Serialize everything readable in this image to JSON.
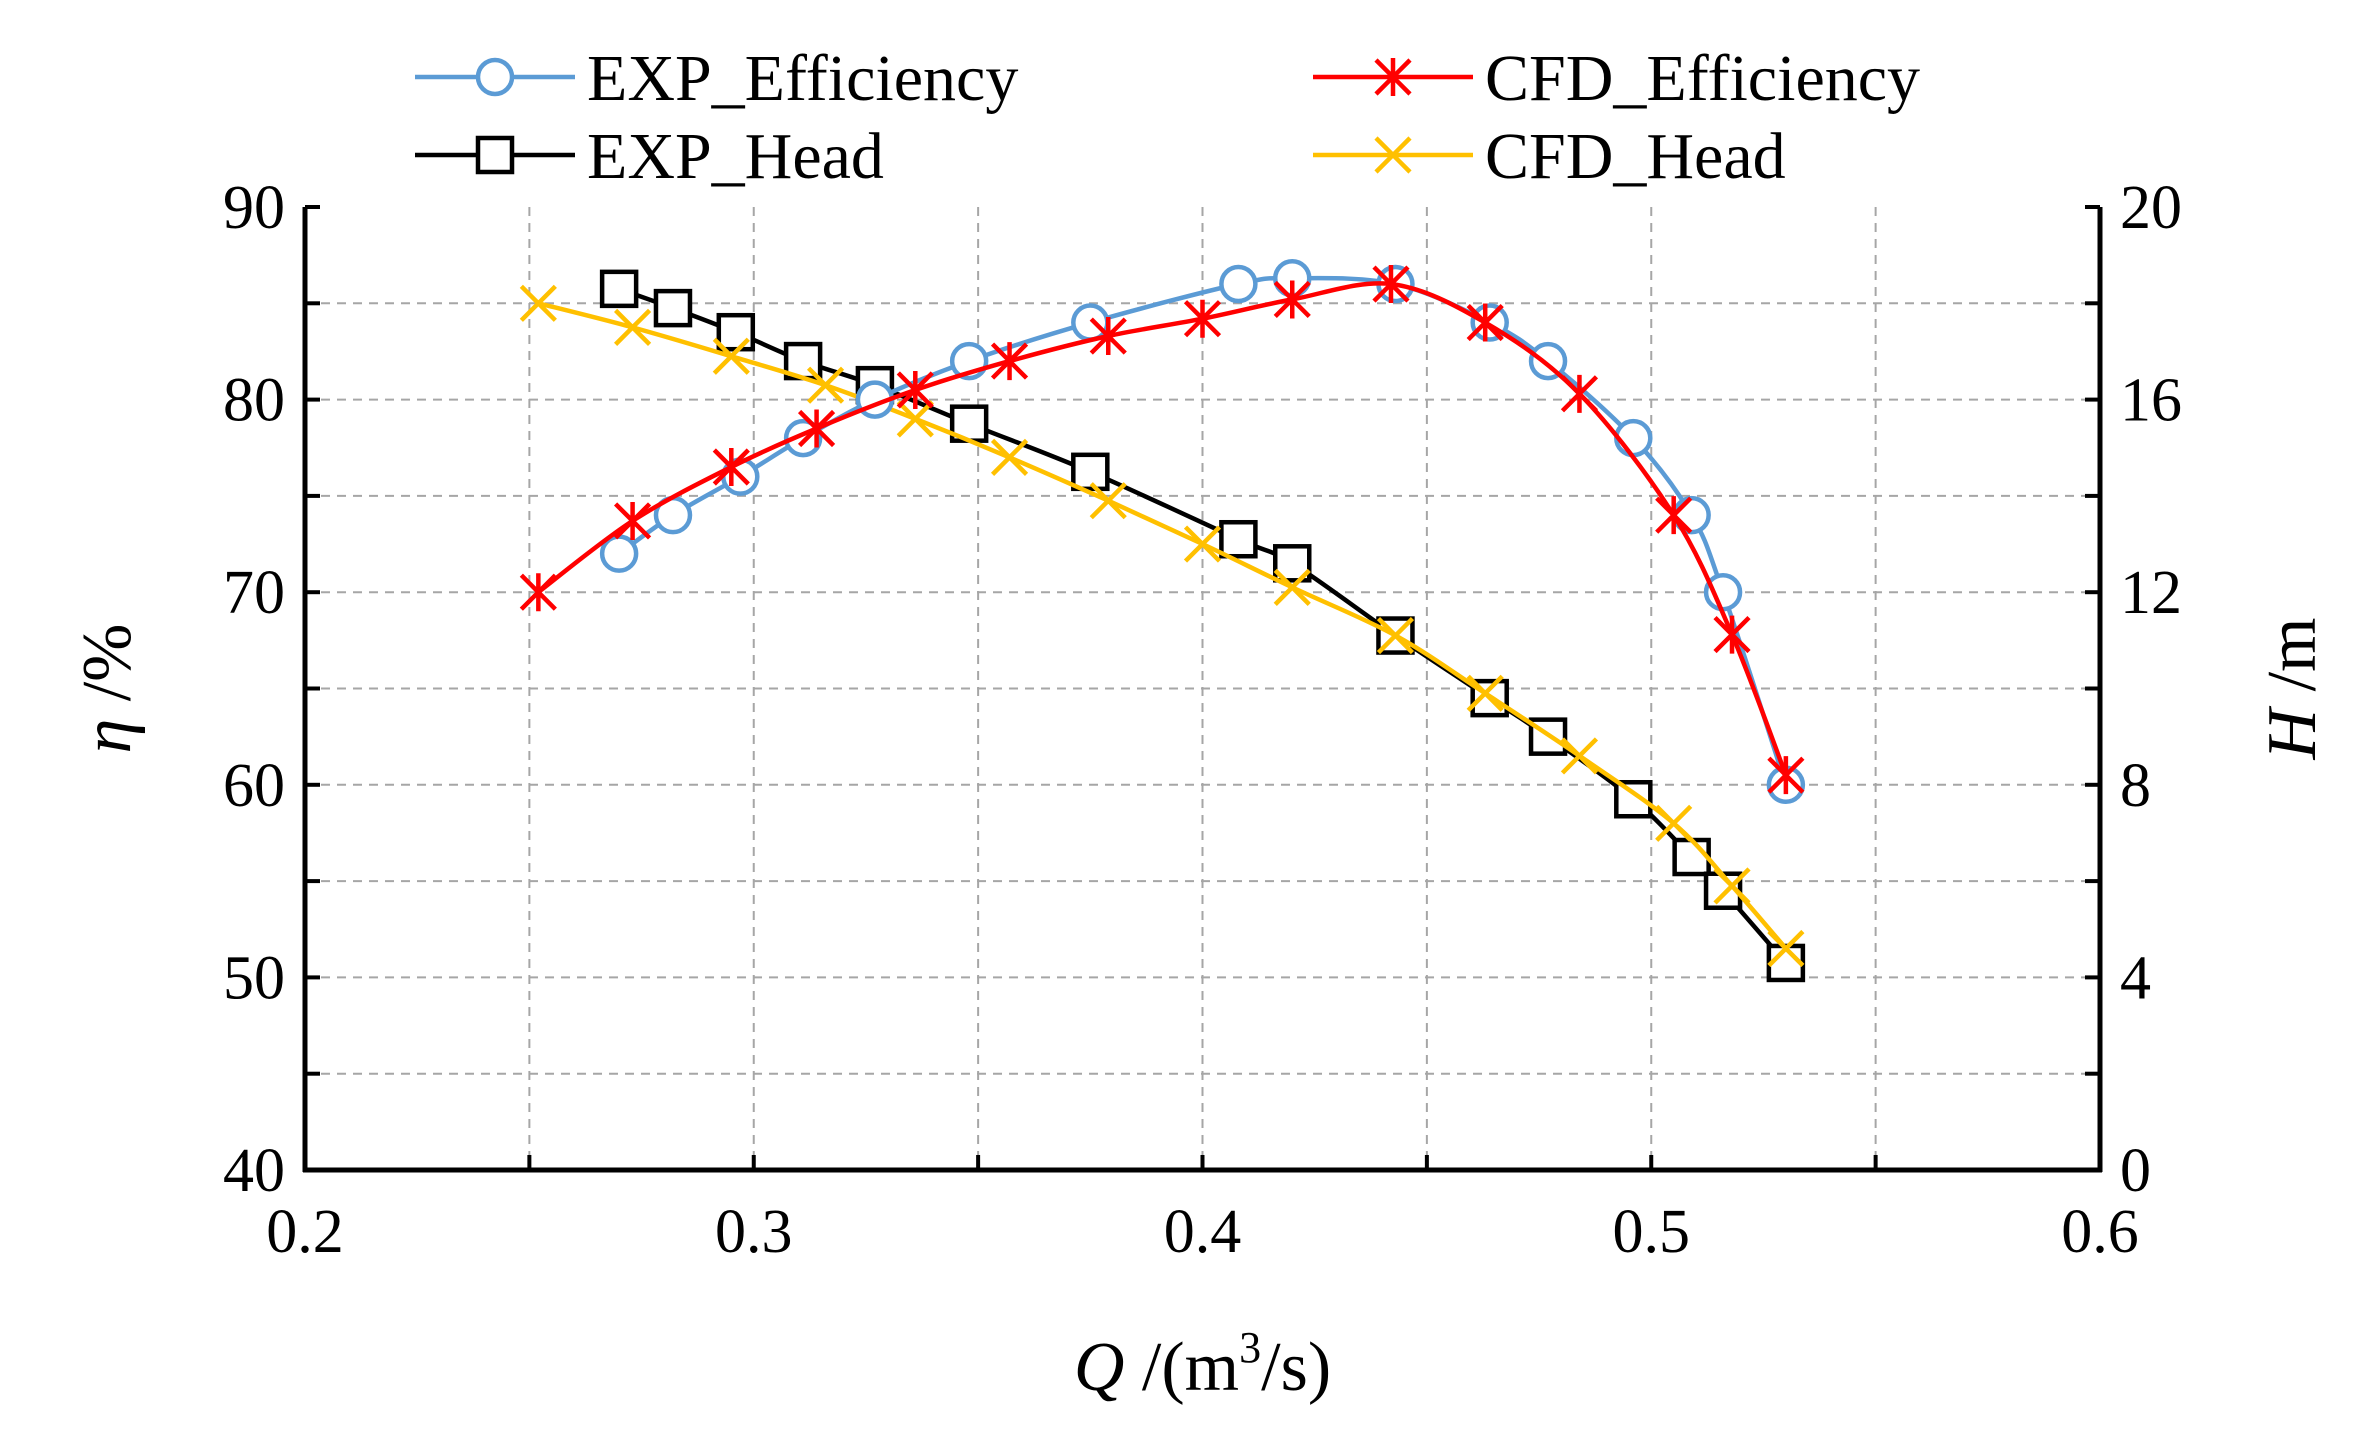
{
  "chart_data": {
    "type": "line",
    "title": "",
    "xlabel": {
      "symbol": "Q",
      "unit_open": " /(m",
      "unit_sup": "3",
      "unit_close": "/s)"
    },
    "ylabel_left": {
      "symbol": "η",
      "unit": " /%"
    },
    "ylabel_right": {
      "symbol": "H",
      "unit": " /m"
    },
    "xlim": [
      0.2,
      0.6
    ],
    "ylim_left": [
      40,
      90
    ],
    "ylim_right": [
      0,
      20
    ],
    "x_ticks": [
      "0.2",
      "0.3",
      "0.4",
      "0.5",
      "0.6"
    ],
    "y_left_ticks": [
      "40",
      "50",
      "60",
      "70",
      "80",
      "90"
    ],
    "y_right_ticks": [
      "0",
      "4",
      "8",
      "12",
      "16",
      "20"
    ],
    "grid": true,
    "legend_position": "top",
    "series": [
      {
        "name": "EXP_Efficiency",
        "axis": "left",
        "color": "#5b9bd5",
        "marker": "circle",
        "x": [
          0.27,
          0.282,
          0.297,
          0.311,
          0.327,
          0.348,
          0.375,
          0.408,
          0.42,
          0.443,
          0.464,
          0.477,
          0.496,
          0.509,
          0.516,
          0.53
        ],
        "y": [
          72.0,
          74.0,
          76.0,
          78.0,
          80.0,
          82.0,
          84.0,
          86.0,
          86.3,
          86.0,
          84.0,
          82.0,
          78.0,
          74.0,
          70.0,
          60.0
        ]
      },
      {
        "name": "CFD_Efficiency",
        "axis": "left",
        "color": "#ff0000",
        "marker": "asterisk",
        "x": [
          0.252,
          0.273,
          0.295,
          0.314,
          0.336,
          0.357,
          0.379,
          0.4,
          0.42,
          0.442,
          0.463,
          0.484,
          0.505,
          0.518,
          0.53
        ],
        "y": [
          70.0,
          73.7,
          76.5,
          78.5,
          80.5,
          82.0,
          83.3,
          84.2,
          85.2,
          86.0,
          84.0,
          80.3,
          74.0,
          67.8,
          60.5
        ]
      },
      {
        "name": "EXP_Head",
        "axis": "right",
        "color": "#000000",
        "marker": "square",
        "x": [
          0.27,
          0.282,
          0.296,
          0.311,
          0.327,
          0.348,
          0.375,
          0.408,
          0.42,
          0.443,
          0.464,
          0.477,
          0.496,
          0.509,
          0.516,
          0.53
        ],
        "y": [
          18.3,
          17.9,
          17.4,
          16.8,
          16.3,
          15.5,
          14.5,
          13.1,
          12.6,
          11.1,
          9.8,
          9.0,
          7.7,
          6.5,
          5.8,
          4.3
        ]
      },
      {
        "name": "CFD_Head",
        "axis": "right",
        "color": "#ffc000",
        "marker": "x",
        "x": [
          0.252,
          0.273,
          0.295,
          0.316,
          0.336,
          0.357,
          0.379,
          0.4,
          0.42,
          0.443,
          0.463,
          0.484,
          0.505,
          0.518,
          0.53
        ],
        "y": [
          18.0,
          17.5,
          16.9,
          16.3,
          15.6,
          14.8,
          13.9,
          13.0,
          12.1,
          11.1,
          9.9,
          8.6,
          7.2,
          5.9,
          4.6
        ]
      }
    ]
  }
}
